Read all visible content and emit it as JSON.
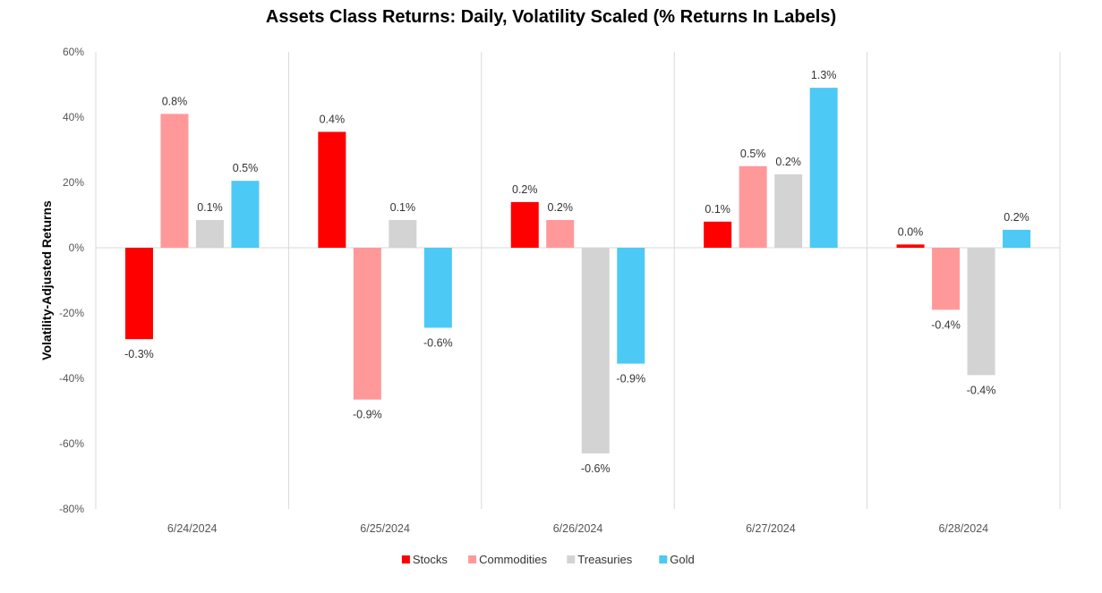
{
  "chart_data": {
    "type": "bar",
    "title": "Assets Class Returns: Daily, Volatility Scaled (% Returns In Labels)",
    "ylabel": "Volatility-Adjusted Returns",
    "xlabel": "",
    "ylim": [
      -80,
      60
    ],
    "yticks": [
      60,
      40,
      20,
      0,
      -20,
      -40,
      -60,
      -80
    ],
    "ytick_labels": [
      "60%",
      "40%",
      "20%",
      "0%",
      "-20%",
      "-40%",
      "-60%",
      "-80%"
    ],
    "categories": [
      "6/24/2024",
      "6/25/2024",
      "6/26/2024",
      "6/27/2024",
      "6/28/2024"
    ],
    "legend_position": "bottom",
    "series": [
      {
        "name": "Stocks",
        "color": "#ff0000",
        "values": [
          -28,
          35.5,
          14,
          8,
          1
        ],
        "labels": [
          "-0.3%",
          "0.4%",
          "0.2%",
          "0.1%",
          "0.0%"
        ]
      },
      {
        "name": "Commodities",
        "color": "#ff9999",
        "values": [
          41,
          -46.5,
          8.5,
          25,
          -19
        ],
        "labels": [
          "0.8%",
          "-0.9%",
          "0.2%",
          "0.5%",
          "-0.4%"
        ]
      },
      {
        "name": "Treasuries",
        "color": "#d3d3d3",
        "values": [
          8.5,
          8.5,
          -63,
          22.5,
          -39
        ],
        "labels": [
          "0.1%",
          "0.1%",
          "-0.6%",
          "0.2%",
          "-0.4%"
        ]
      },
      {
        "name": "Gold",
        "color": "#4dc9f6",
        "values": [
          20.5,
          -24.5,
          -35.5,
          49,
          5.5
        ],
        "labels": [
          "0.5%",
          "-0.6%",
          "-0.9%",
          "1.3%",
          "0.2%"
        ]
      }
    ]
  }
}
